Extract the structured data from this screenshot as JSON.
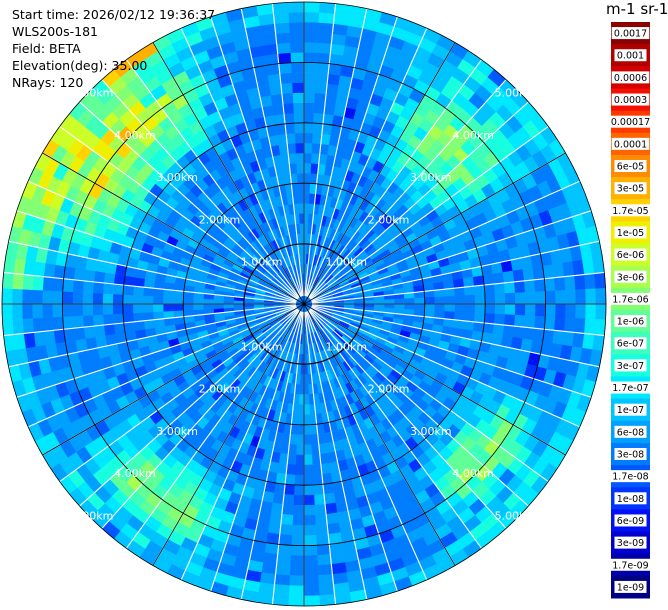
{
  "header": {
    "start_time": "Start time: 2026/02/12 19:36:37",
    "instrument": "WLS200s-181",
    "field": "Field: BETA",
    "elevation": "Elevation(deg): 35.00",
    "nrays": "NRays: 120"
  },
  "colorbar": {
    "unit_label": "m-1 sr-1",
    "levels": [
      "0.0017",
      "0.001",
      "0.0006",
      "0.0003",
      "0.00017",
      "0.0001",
      "6e-05",
      "3e-05",
      "1.7e-05",
      "1e-05",
      "6e-06",
      "3e-06",
      "1.7e-06",
      "1e-06",
      "6e-07",
      "3e-07",
      "1.7e-07",
      "1e-07",
      "6e-08",
      "3e-08",
      "1.7e-08",
      "1e-08",
      "6e-09",
      "3e-09",
      "1.7e-09",
      "1e-09"
    ],
    "colors": [
      "#8b0000",
      "#b00000",
      "#d40000",
      "#f41000",
      "#ff3a00",
      "#ff6400",
      "#ff8c00",
      "#ffb000",
      "#ffd200",
      "#eef000",
      "#ccff28",
      "#a8ff50",
      "#84ff74",
      "#60ff98",
      "#3cffbc",
      "#18ffe0",
      "#00e8ff",
      "#00c4ff",
      "#00a0ff",
      "#007cff",
      "#0058ff",
      "#0034ff",
      "#0010f4",
      "#0000d0",
      "#0000a8",
      "#000084"
    ]
  },
  "chart_data": {
    "type": "heatmap",
    "projection": "polar (PPI)",
    "n_rays": 120,
    "range_rings_km": [
      1,
      2,
      3,
      4,
      5
    ],
    "range_ring_labels": [
      "1.00km",
      "2.00km",
      "3.00km",
      "4.00km",
      "5.00km"
    ],
    "max_range_km": 5,
    "azimuth_spokes_deg": [
      0,
      30,
      60,
      90,
      120,
      150,
      180,
      210,
      240,
      270,
      300,
      330
    ],
    "grid": true,
    "colorscale": "log, 1e-09 to 0.0017",
    "dominant_value_range": "1e-08 to 3e-07",
    "enhanced_regions": [
      {
        "azimuth_deg": [
          285,
          335
        ],
        "range_km": [
          3.0,
          5.0
        ],
        "approx_value": "1e-06 to 3e-05"
      },
      {
        "azimuth_deg": [
          25,
          60
        ],
        "range_km": [
          2.5,
          4.6
        ],
        "approx_value": "3e-07 to 1e-06"
      },
      {
        "azimuth_deg": [
          115,
          145
        ],
        "range_km": [
          3.2,
          4.6
        ],
        "approx_value": "3e-07 to 3e-06"
      },
      {
        "azimuth_deg": [
          200,
          235
        ],
        "range_km": [
          3.3,
          4.6
        ],
        "approx_value": "1e-07 to 6e-07"
      }
    ]
  }
}
